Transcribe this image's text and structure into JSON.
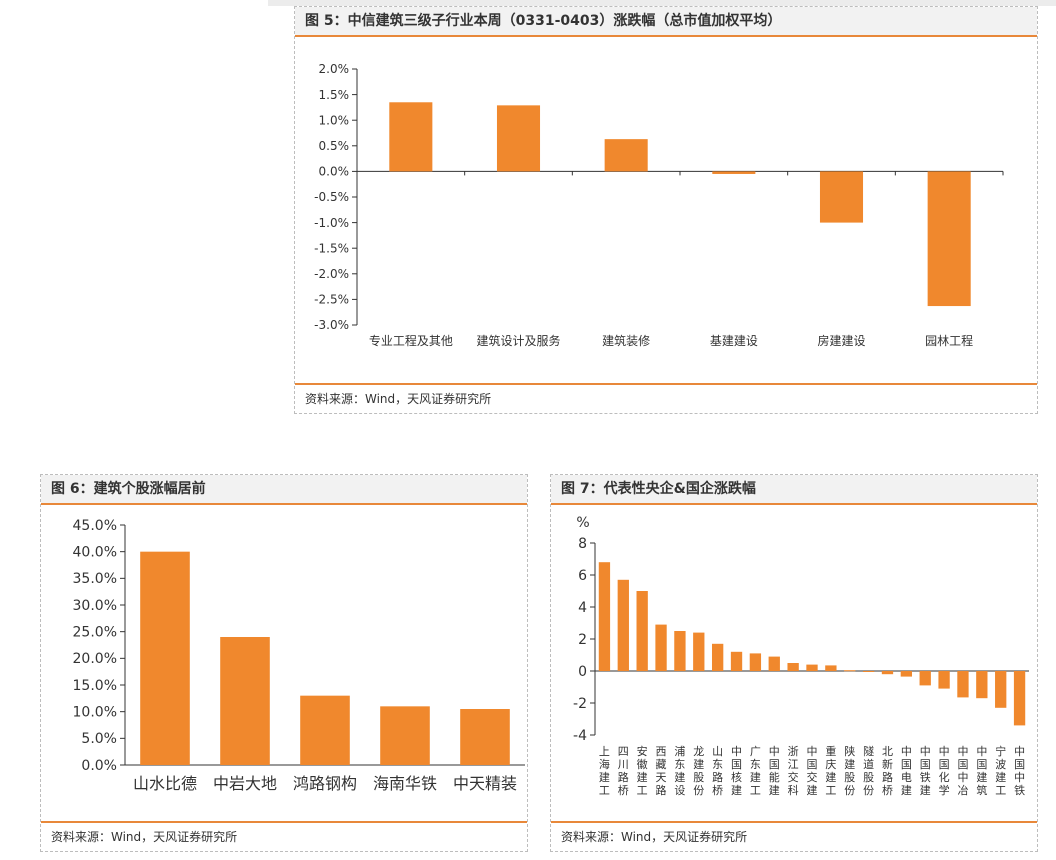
{
  "colors": {
    "bar": "#f0882d",
    "accent": "#e8883a",
    "axis": "#333333"
  },
  "panels": [
    {
      "title": "图 5：中信建筑三级子行业本周（0331-0403）涨跌幅（总市值加权平均）",
      "source": "资料来源：Wind，天风证券研究所",
      "chart_data": {
        "type": "bar",
        "categories": [
          "专业工程及其他",
          "建筑设计及服务",
          "建筑装修",
          "基建建设",
          "房建建设",
          "园林工程"
        ],
        "values": [
          1.35,
          1.29,
          0.63,
          -0.05,
          -1.0,
          -2.63
        ],
        "ylim": [
          -3.0,
          2.0
        ],
        "yticks": [
          "2.0%",
          "1.5%",
          "1.0%",
          "0.5%",
          "0.0%",
          "-0.5%",
          "-1.0%",
          "-1.5%",
          "-2.0%",
          "-2.5%",
          "-3.0%"
        ],
        "ytick_values": [
          2.0,
          1.5,
          1.0,
          0.5,
          0.0,
          -0.5,
          -1.0,
          -1.5,
          -2.0,
          -2.5,
          -3.0
        ],
        "grid": false
      }
    },
    {
      "title": "图 6：建筑个股涨幅居前",
      "source": "资料来源：Wind，天风证券研究所",
      "chart_data": {
        "type": "bar",
        "categories": [
          "山水比德",
          "中岩大地",
          "鸿路钢构",
          "海南华铁",
          "中天精装"
        ],
        "values": [
          40.0,
          24.0,
          13.0,
          11.0,
          10.5
        ],
        "ylim": [
          0,
          45
        ],
        "yticks": [
          "45.0%",
          "40.0%",
          "35.0%",
          "30.0%",
          "25.0%",
          "20.0%",
          "15.0%",
          "10.0%",
          "5.0%",
          "0.0%"
        ],
        "ytick_values": [
          45,
          40,
          35,
          30,
          25,
          20,
          15,
          10,
          5,
          0
        ],
        "grid": false
      }
    },
    {
      "title": "图 7：代表性央企&国企涨跌幅",
      "source": "资料来源：Wind，天风证券研究所",
      "chart_data": {
        "type": "bar",
        "ylabel": "%",
        "categories": [
          "上海建工",
          "四川路桥",
          "安徽建工",
          "西藏天路",
          "浦东建设",
          "龙建股份",
          "山东路桥",
          "中国核建",
          "广东建工",
          "中国能建",
          "浙江交科",
          "中国交建",
          "重庆建工",
          "陕建股份",
          "隧道股份",
          "北新路桥",
          "中国电建",
          "中国铁建",
          "中国化学",
          "中国中冶",
          "中国建筑",
          "宁波建工",
          "中国中铁"
        ],
        "values": [
          6.8,
          5.7,
          5.0,
          2.9,
          2.5,
          2.4,
          1.7,
          1.2,
          1.1,
          0.9,
          0.5,
          0.4,
          0.35,
          0.05,
          0.0,
          -0.2,
          -0.35,
          -0.9,
          -1.1,
          -1.65,
          -1.7,
          -2.3,
          -3.4
        ],
        "ylim": [
          -4,
          8
        ],
        "yticks": [
          "8",
          "6",
          "4",
          "2",
          "0",
          "-2",
          "-4"
        ],
        "ytick_values": [
          8,
          6,
          4,
          2,
          0,
          -2,
          -4
        ],
        "grid": false
      }
    }
  ]
}
